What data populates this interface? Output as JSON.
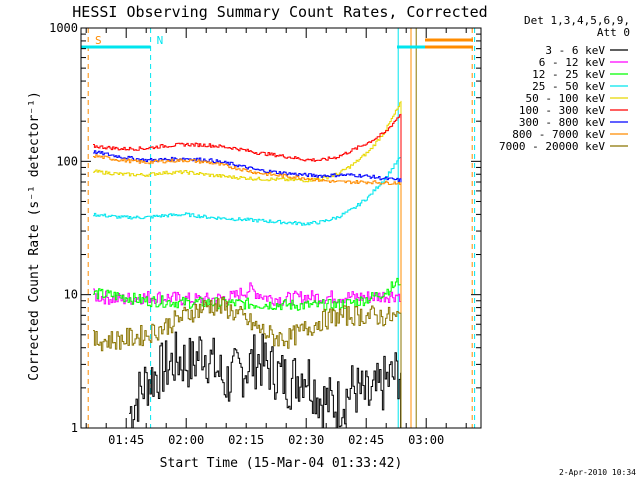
{
  "chart_data": {
    "type": "line",
    "title": "HESSI Observing Summary Count Rates, Corrected",
    "xlabel": "Start Time (15-Mar-04 01:33:42)",
    "ylabel": "Corrected Count Rate (s⁻¹ detector⁻¹)",
    "yscale": "log",
    "ylim": [
      1,
      1000
    ],
    "xlim_minutes": [
      0,
      100
    ],
    "xticks": [
      {
        "label": "01:45",
        "minutes": 11.3
      },
      {
        "label": "02:00",
        "minutes": 26.3
      },
      {
        "label": "02:15",
        "minutes": 41.3
      },
      {
        "label": "02:30",
        "minutes": 56.3
      },
      {
        "label": "02:45",
        "minutes": 71.3
      },
      {
        "label": "03:00",
        "minutes": 86.3
      }
    ],
    "yticks": [
      {
        "label": "1",
        "value": 1
      },
      {
        "label": "10",
        "value": 10
      },
      {
        "label": "100",
        "value": 100
      },
      {
        "label": "1000",
        "value": 1000
      }
    ],
    "legend": {
      "header": [
        "Det 1,3,4,5,6,9,",
        "Att 0"
      ],
      "position": "right"
    },
    "annotations": [
      {
        "label": "S",
        "minutes": 2,
        "color": "#ff8c00"
      },
      {
        "label": "N",
        "minutes": 17.4,
        "color": "#00e5ee"
      }
    ],
    "night_bars": [
      {
        "from": 0,
        "to": 17.4,
        "color": "#00e5ee"
      },
      {
        "from": 79,
        "to": 98,
        "color": "#00e5ee"
      },
      {
        "from": 86,
        "to": 98,
        "color": "#ff8c00"
      }
    ],
    "vlines": [
      {
        "minutes": 1.8,
        "color": "#ff8c00",
        "style": "dash"
      },
      {
        "minutes": 17.4,
        "color": "#00e5ee",
        "style": "dash"
      },
      {
        "minutes": 79.3,
        "color": "#00e5ee",
        "style": "solid"
      },
      {
        "minutes": 82.5,
        "color": "#ff8c00",
        "style": "solid"
      },
      {
        "minutes": 83.8,
        "color": "#8b7500",
        "style": "solid"
      },
      {
        "minutes": 97.8,
        "color": "#ff8c00",
        "style": "dash"
      },
      {
        "minutes": 98.4,
        "color": "#00e5ee",
        "style": "dash"
      }
    ],
    "series": [
      {
        "name": "3 - 6 keV",
        "color": "#000000",
        "x": [
          12,
          16,
          20,
          24,
          28,
          30,
          32,
          34,
          36,
          40,
          44,
          48,
          52,
          56,
          60,
          64,
          68,
          72,
          76,
          80
        ],
        "y": [
          1.3,
          2.2,
          2.7,
          3.3,
          3.0,
          4.0,
          3.3,
          2.7,
          2.2,
          2.7,
          3.3,
          2.7,
          2.2,
          2.7,
          1.6,
          1.5,
          2.0,
          1.6,
          2.2,
          2.7
        ]
      },
      {
        "name": "6 - 12 keV",
        "color": "#ff00ff",
        "x": [
          3,
          10,
          16,
          20,
          26,
          32,
          38,
          42,
          46,
          50,
          56,
          62,
          68,
          72,
          76,
          80
        ],
        "y": [
          9.8,
          9.2,
          9.6,
          9.6,
          9.2,
          9.2,
          9.6,
          11.0,
          9.6,
          9.2,
          9.6,
          9.6,
          9.6,
          9.6,
          9.8,
          10.0
        ]
      },
      {
        "name": "12 - 25 keV",
        "color": "#00ff00",
        "x": [
          3,
          10,
          16,
          20,
          26,
          32,
          38,
          44,
          50,
          56,
          60,
          64,
          68,
          72,
          76,
          80
        ],
        "y": [
          10.2,
          9.7,
          9.0,
          8.9,
          8.7,
          8.7,
          8.6,
          8.5,
          8.4,
          8.3,
          8.3,
          8.4,
          8.7,
          9.4,
          10.5,
          13.0
        ]
      },
      {
        "name": "25 - 50 keV",
        "color": "#00e5ee",
        "x": [
          3,
          10,
          16,
          20,
          26,
          32,
          38,
          44,
          50,
          56,
          60,
          64,
          68,
          72,
          76,
          80
        ],
        "y": [
          40,
          38,
          38,
          39,
          40,
          38,
          37,
          36,
          35,
          34,
          35,
          38,
          44,
          55,
          75,
          110
        ]
      },
      {
        "name": "50 - 100 keV",
        "color": "#e8d800",
        "x": [
          3,
          10,
          16,
          20,
          26,
          32,
          38,
          44,
          50,
          56,
          60,
          64,
          68,
          72,
          76,
          80
        ],
        "y": [
          84,
          80,
          79,
          82,
          83,
          79,
          76,
          74,
          73,
          72,
          74,
          80,
          95,
          120,
          170,
          280
        ]
      },
      {
        "name": "100 - 300 keV",
        "color": "#ff0000",
        "x": [
          3,
          10,
          16,
          20,
          26,
          32,
          38,
          44,
          50,
          56,
          60,
          64,
          68,
          72,
          76,
          80
        ],
        "y": [
          130,
          124,
          125,
          130,
          134,
          132,
          126,
          116,
          110,
          103,
          102,
          108,
          122,
          140,
          165,
          230
        ]
      },
      {
        "name": "300 - 800 keV",
        "color": "#0000ff",
        "x": [
          3,
          10,
          16,
          20,
          26,
          32,
          38,
          44,
          50,
          56,
          60,
          64,
          68,
          72,
          76,
          80
        ],
        "y": [
          118,
          108,
          102,
          103,
          105,
          102,
          95,
          86,
          82,
          79,
          78,
          79,
          79,
          77,
          74,
          72
        ]
      },
      {
        "name": "800 - 7000 keV",
        "color": "#ff8c00",
        "x": [
          3,
          10,
          16,
          20,
          26,
          32,
          38,
          44,
          50,
          56,
          60,
          64,
          68,
          72,
          76,
          80
        ],
        "y": [
          110,
          102,
          98,
          100,
          102,
          98,
          90,
          82,
          78,
          75,
          72,
          70,
          70,
          70,
          69,
          69
        ]
      },
      {
        "name": "7000 - 20000 keV",
        "color": "#8b7500",
        "x": [
          3,
          10,
          16,
          20,
          24,
          28,
          32,
          36,
          40,
          44,
          48,
          52,
          56,
          60,
          64,
          68,
          72,
          76,
          80
        ],
        "y": [
          4.5,
          4.6,
          5.0,
          5.6,
          6.5,
          7.5,
          8.3,
          8.0,
          6.8,
          5.6,
          4.8,
          4.7,
          5.5,
          6.4,
          6.9,
          7.0,
          7.0,
          6.8,
          6.7
        ]
      }
    ]
  },
  "footer": {
    "date": "2-Apr-2010 10:34"
  }
}
